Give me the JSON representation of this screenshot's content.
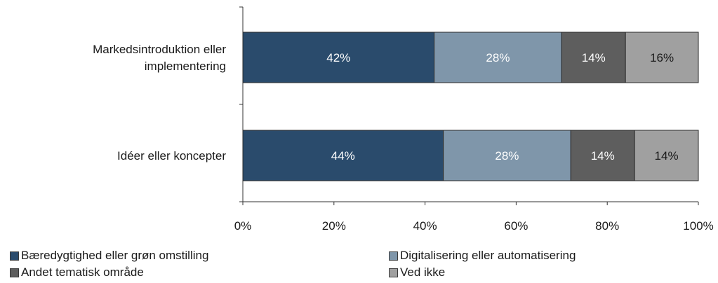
{
  "chart_data": {
    "type": "bar",
    "orientation": "horizontal",
    "stacked": true,
    "categories": [
      "Markedsintroduktion eller implementering",
      "Idéer eller koncepter"
    ],
    "category_label_lines": [
      [
        "Markedsintroduktion eller",
        "implementering"
      ],
      [
        "Idéer eller koncepter"
      ]
    ],
    "series": [
      {
        "name": "Bæredygtighed eller grøn omstilling",
        "values": [
          42,
          44
        ],
        "labels": [
          "42%",
          "44%"
        ],
        "color": "#2a4b6c",
        "label_color": "#ffffff"
      },
      {
        "name": "Digitalisering eller automatisering",
        "values": [
          28,
          28
        ],
        "labels": [
          "28%",
          "28%"
        ],
        "color": "#7f96aa",
        "label_color": "#ffffff"
      },
      {
        "name": "Andet tematisk område",
        "values": [
          14,
          14
        ],
        "labels": [
          "14%",
          "14%"
        ],
        "color": "#5e5e5e",
        "label_color": "#ffffff"
      },
      {
        "name": "Ved ikke",
        "values": [
          16,
          14
        ],
        "labels": [
          "16%",
          "14%"
        ],
        "color": "#a0a0a0",
        "label_color": "#1a1a1a"
      }
    ],
    "xlim": [
      0,
      100
    ],
    "xticks": [
      0,
      20,
      40,
      60,
      80,
      100
    ],
    "xtick_labels": [
      "0%",
      "20%",
      "40%",
      "60%",
      "80%",
      "100%"
    ],
    "grid": false,
    "legend_position": "bottom"
  }
}
